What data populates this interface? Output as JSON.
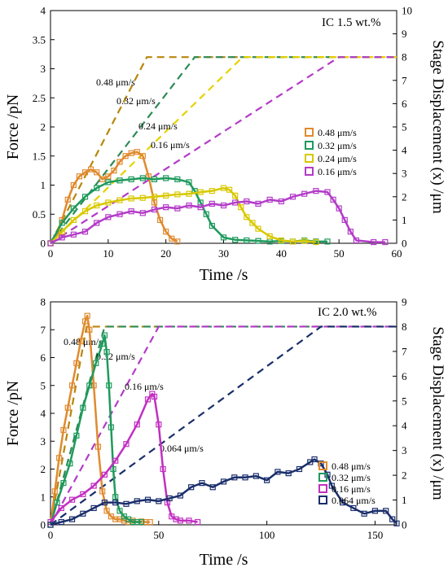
{
  "chart_data": [
    {
      "type": "line",
      "annotation": "IC 1.5 wt.%",
      "xlabel": "Time /s",
      "ylabel": "Force /pN",
      "y2label": "Stage Displacement (x) /μm",
      "xlim": [
        0,
        60
      ],
      "ylim": [
        0,
        4
      ],
      "y2lim": [
        0,
        10
      ],
      "xticks": [
        "0",
        "10",
        "20",
        "30",
        "40",
        "50",
        "60"
      ],
      "yticks": [
        "0",
        "0.5",
        "1",
        "1.5",
        "2",
        "2.5",
        "3",
        "3.5",
        "4"
      ],
      "y2ticks": [
        "0",
        "1",
        "2",
        "3",
        "4",
        "5",
        "6",
        "7",
        "8",
        "9",
        "10"
      ],
      "legend_position": "right",
      "legend": [
        "0.48 μm/s",
        "0.32 μm/s",
        "0.24 μm/s",
        "0.16 μm/s"
      ],
      "series": [
        {
          "name": "0.48 μm/s",
          "color": "#e08a2e",
          "x": [
            0,
            1,
            2,
            3,
            4,
            5,
            6,
            7,
            8,
            9,
            10,
            11,
            12,
            13,
            14,
            15,
            16,
            17,
            18,
            19,
            20,
            21,
            22
          ],
          "y": [
            0,
            0.1,
            0.4,
            0.75,
            1.0,
            1.15,
            1.22,
            1.27,
            1.22,
            1.1,
            1.15,
            1.25,
            1.4,
            1.5,
            1.55,
            1.57,
            1.5,
            1.15,
            0.7,
            0.4,
            0.2,
            0.08,
            0.03
          ]
        },
        {
          "name": "0.32 μm/s",
          "color": "#1e9a5c",
          "x": [
            0,
            2,
            4,
            6,
            8,
            10,
            12,
            14,
            16,
            18,
            20,
            22,
            24,
            25,
            26,
            27,
            28,
            30,
            32,
            34,
            36,
            38,
            40,
            42,
            44,
            46,
            48
          ],
          "y": [
            0,
            0.35,
            0.6,
            0.8,
            0.95,
            1.05,
            1.08,
            1.1,
            1.12,
            1.1,
            1.12,
            1.1,
            1.05,
            0.9,
            0.7,
            0.5,
            0.3,
            0.1,
            0.06,
            0.05,
            0.04,
            0.03,
            0.04,
            0.03,
            0.05,
            0.03,
            0.03
          ]
        },
        {
          "name": "0.24 μm/s",
          "color": "#d8c800",
          "x": [
            0,
            2,
            4,
            6,
            8,
            10,
            12,
            14,
            16,
            18,
            20,
            22,
            24,
            26,
            28,
            30,
            31,
            32,
            33,
            34,
            35,
            36,
            38,
            40,
            42,
            44,
            46
          ],
          "y": [
            0,
            0.2,
            0.4,
            0.55,
            0.65,
            0.7,
            0.74,
            0.77,
            0.78,
            0.8,
            0.82,
            0.84,
            0.85,
            0.88,
            0.9,
            0.95,
            0.92,
            0.82,
            0.62,
            0.45,
            0.35,
            0.25,
            0.12,
            0.05,
            0.03,
            0.04,
            0.02
          ]
        },
        {
          "name": "0.16 μm/s",
          "color": "#b33bc8",
          "x": [
            0,
            2,
            4,
            6,
            8,
            10,
            12,
            14,
            16,
            18,
            20,
            22,
            24,
            26,
            28,
            30,
            32,
            34,
            36,
            38,
            40,
            42,
            44,
            46,
            48,
            49,
            50,
            51,
            52,
            53,
            56,
            58
          ],
          "y": [
            0,
            0.1,
            0.15,
            0.2,
            0.35,
            0.45,
            0.5,
            0.55,
            0.52,
            0.58,
            0.62,
            0.6,
            0.65,
            0.62,
            0.68,
            0.65,
            0.7,
            0.72,
            0.68,
            0.75,
            0.72,
            0.8,
            0.85,
            0.9,
            0.88,
            0.75,
            0.6,
            0.4,
            0.2,
            0.05,
            0.02,
            0.02
          ]
        }
      ],
      "displacement": [
        {
          "series": "0.48 μm/s",
          "color": "#b8860b",
          "label": "0.48 μm/s",
          "x": [
            0,
            16.7,
            60
          ],
          "y": [
            0,
            8,
            8
          ]
        },
        {
          "series": "0.32 μm/s",
          "color": "#2e8b57",
          "label": "0.32 μm/s",
          "x": [
            0,
            25,
            60
          ],
          "y": [
            0,
            8,
            8
          ]
        },
        {
          "series": "0.24 μm/s",
          "color": "#e6d200",
          "label": "0.24 μm/s",
          "x": [
            0,
            33.3,
            60
          ],
          "y": [
            0,
            8,
            8
          ]
        },
        {
          "series": "0.16 μm/s",
          "color": "#b33bc8",
          "label": "0.16 μm/s",
          "x": [
            0,
            50,
            60
          ],
          "y": [
            0,
            8,
            8
          ]
        }
      ]
    },
    {
      "type": "line",
      "annotation": "IC 2.0 wt.%",
      "xlabel": "Time /s",
      "ylabel": "Force /pN",
      "y2label": "Stage Displacement (x) /μm",
      "xlim": [
        0,
        160
      ],
      "ylim": [
        0,
        8
      ],
      "y2lim": [
        0,
        9
      ],
      "xticks": [
        "0",
        "50",
        "100",
        "150"
      ],
      "yticks": [
        "0",
        "1",
        "2",
        "3",
        "4",
        "5",
        "6",
        "7",
        "8"
      ],
      "y2ticks": [
        "0",
        "1",
        "2",
        "3",
        "4",
        "5",
        "6",
        "7",
        "8",
        "9"
      ],
      "legend_position": "right",
      "legend": [
        "0.48 μm/s",
        "0.32 μm/s",
        "0.16 μm/s",
        "0.064 μm/s"
      ],
      "series": [
        {
          "name": "0.48 μm/s",
          "color": "#e08a2e",
          "x": [
            0,
            2,
            4,
            6,
            8,
            10,
            12,
            14,
            16,
            17,
            18,
            20,
            22,
            24,
            26,
            28,
            30,
            32,
            34,
            36,
            38,
            40,
            42,
            44,
            46
          ],
          "y": [
            0,
            1.2,
            2.4,
            3.4,
            4.2,
            5.0,
            5.8,
            6.6,
            7.3,
            7.5,
            7.0,
            5.0,
            2.8,
            1.2,
            0.5,
            0.3,
            0.2,
            0.2,
            0.15,
            0.1,
            0.15,
            0.1,
            0.12,
            0.1,
            0.1
          ]
        },
        {
          "name": "0.32 μm/s",
          "color": "#1e9a5c",
          "x": [
            0,
            3,
            6,
            9,
            12,
            15,
            18,
            21,
            24,
            25,
            26,
            27,
            28,
            29,
            30,
            32,
            34,
            36,
            38,
            40,
            42
          ],
          "y": [
            0,
            0.8,
            1.5,
            2.2,
            3.2,
            4.2,
            5.0,
            5.8,
            6.5,
            6.8,
            6.2,
            5.0,
            3.5,
            2.0,
            1.0,
            0.5,
            0.3,
            0.2,
            0.1,
            0.1,
            0.1
          ]
        },
        {
          "name": "0.16 μm/s",
          "color": "#c22fc2",
          "x": [
            0,
            5,
            10,
            15,
            20,
            25,
            30,
            35,
            40,
            45,
            47,
            48,
            50,
            52,
            54,
            56,
            58,
            60,
            64,
            68
          ],
          "y": [
            0.1,
            0.6,
            0.9,
            1.1,
            1.4,
            1.8,
            2.3,
            2.9,
            3.6,
            4.5,
            4.7,
            4.6,
            3.6,
            2.0,
            0.8,
            0.3,
            0.2,
            0.15,
            0.15,
            0.1
          ]
        },
        {
          "name": "0.064 μm/s",
          "color": "#1a2e6b",
          "x": [
            0,
            5,
            10,
            15,
            20,
            25,
            30,
            35,
            40,
            45,
            50,
            55,
            60,
            65,
            70,
            75,
            80,
            85,
            90,
            95,
            100,
            105,
            110,
            115,
            120,
            122,
            125,
            128,
            130,
            135,
            140,
            145,
            150,
            155,
            158,
            160
          ],
          "y": [
            0,
            0.1,
            0.2,
            0.4,
            0.6,
            0.8,
            0.8,
            0.75,
            0.85,
            0.9,
            0.85,
            0.95,
            1.05,
            1.35,
            1.5,
            1.35,
            1.55,
            1.7,
            1.7,
            1.75,
            1.6,
            1.9,
            1.85,
            2.0,
            2.25,
            2.35,
            2.2,
            1.8,
            1.4,
            0.8,
            0.6,
            0.4,
            0.5,
            0.5,
            0.2,
            0.05
          ]
        }
      ],
      "displacement": [
        {
          "series": "0.48 μm/s",
          "color": "#b8860b",
          "label": "0.48 μm/s",
          "x": [
            0,
            16.7,
            160
          ],
          "y": [
            0,
            8,
            8
          ]
        },
        {
          "series": "0.32 μm/s",
          "color": "#2e8b57",
          "label": "0.32 μm/s",
          "x": [
            0,
            25,
            160
          ],
          "y": [
            0,
            8,
            8
          ]
        },
        {
          "series": "0.16 μm/s",
          "color": "#b33bc8",
          "label": "0.16 μm/s",
          "x": [
            0,
            50,
            160
          ],
          "y": [
            0,
            8,
            8
          ]
        },
        {
          "series": "0.064 μm/s",
          "color": "#1a2e6b",
          "label": "0.064 μm/s",
          "x": [
            0,
            125,
            160
          ],
          "y": [
            0,
            8,
            8
          ]
        }
      ]
    }
  ]
}
